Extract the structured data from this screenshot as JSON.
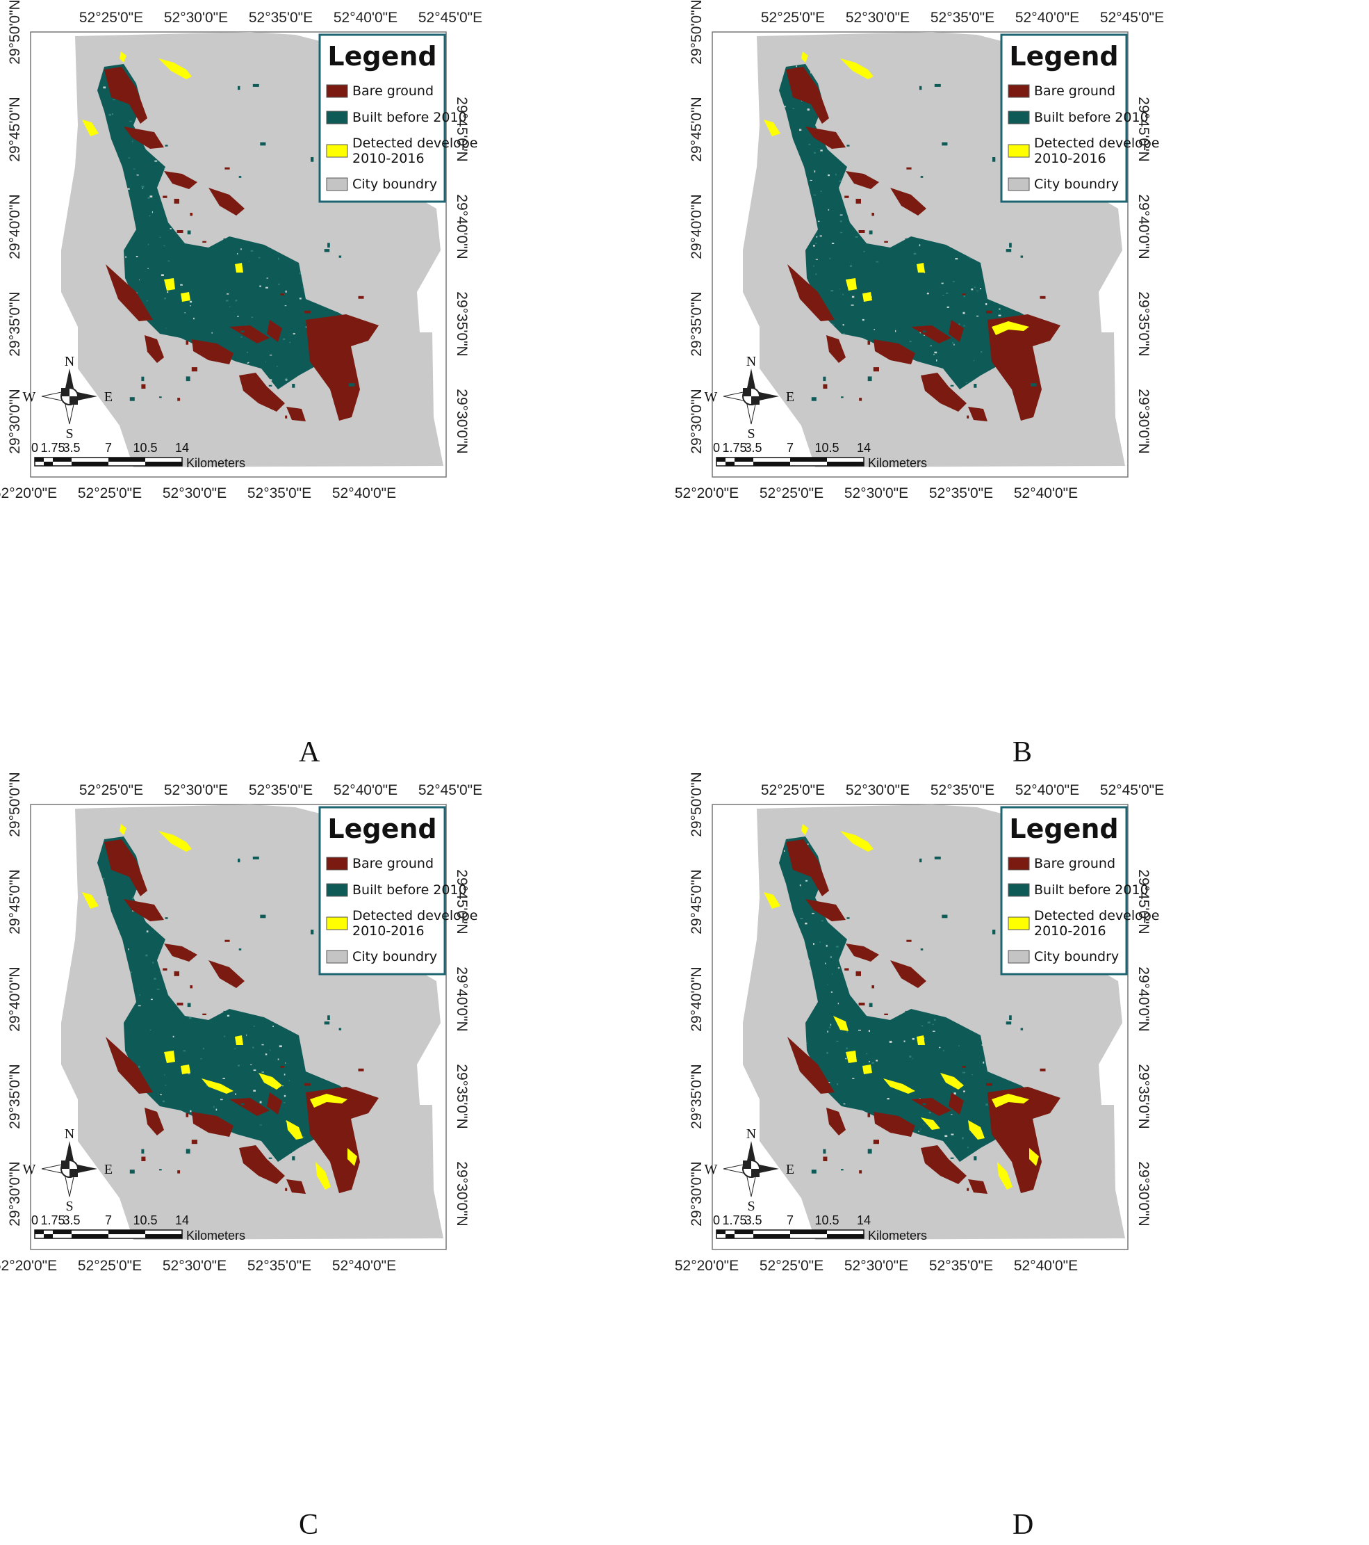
{
  "panels": [
    {
      "letter": "A",
      "variant": 0
    },
    {
      "letter": "B",
      "variant": 1
    },
    {
      "letter": "C",
      "variant": 2
    },
    {
      "letter": "D",
      "variant": 3
    }
  ],
  "top_ticks": [
    "52°25'0\"E",
    "52°30'0\"E",
    "52°35'0\"E",
    "52°40'0\"E",
    "52°45'0\"E"
  ],
  "bottom_ticks": [
    "52°20'0\"E",
    "52°25'0\"E",
    "52°30'0\"E",
    "52°35'0\"E",
    "52°40'0\"E"
  ],
  "left_ticks": [
    "29°50'0\"N",
    "29°45'0\"N",
    "29°40'0\"N",
    "29°35'0\"N",
    "29°30'0\"N"
  ],
  "right_ticks": [
    "29°45'0\"N",
    "29°40'0\"N",
    "29°35'0\"N",
    "29°30'0\"N"
  ],
  "legend": {
    "title": "Legend",
    "items": [
      {
        "label": "Bare ground",
        "color": "#7a1a10"
      },
      {
        "label": "Built before 2010",
        "color": "#0e5a57"
      },
      {
        "label": "Detected develope",
        "label2": "2010-2016",
        "color": "#ffff00"
      },
      {
        "label": "City boundry",
        "color": "#c4c4c4"
      }
    ]
  },
  "scale_bar": {
    "labels": [
      "0",
      "1.75",
      "3.5",
      "7",
      "10.5",
      "14"
    ],
    "unit": "Kilometers"
  },
  "compass": {
    "n": "N",
    "s": "S",
    "e": "E",
    "w": "W"
  },
  "colors": {
    "boundary": "#c9c9c9",
    "built": "#0e5a57",
    "bare": "#7a1a10",
    "developed": "#ffff00",
    "legend_border": "#1d6472"
  }
}
